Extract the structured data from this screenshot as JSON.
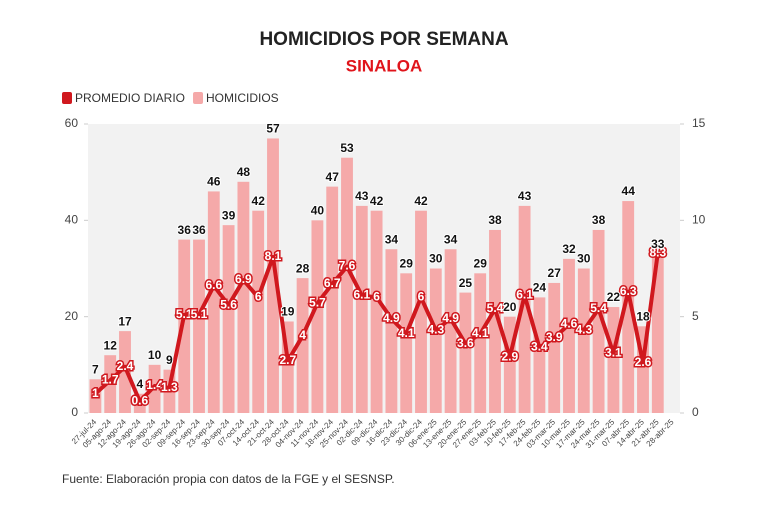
{
  "chart_data": {
    "type": "bar-line",
    "title": "HOMICIDIOS POR SEMANA",
    "subtitle": "SINALOA",
    "source": "Fuente: Elaboración propia con datos de la FGE y el SESNSP.",
    "categories": [
      "27-jul-24",
      "05-ago-24",
      "12-ago-24",
      "19-ago-24",
      "26-ago-24",
      "02-sep-24",
      "09-sep-24",
      "16-sep-24",
      "23-sep-24",
      "30-sep-24",
      "07-oct-24",
      "14-oct-24",
      "21-oct-24",
      "28-oct-24",
      "04-nov-24",
      "11-nov-24",
      "18-nov-24",
      "25-nov-24",
      "02-dic-24",
      "09-dic-24",
      "16-dic-24",
      "23-dic-24",
      "30-dic-24",
      "06-ene-25",
      "13-ene-25",
      "20-ene-25",
      "27-ene-25",
      "03-feb-25",
      "10-feb-25",
      "17-feb-25",
      "24-feb-25",
      "03-mar-25",
      "10-mar-25",
      "17-mar-25",
      "24-mar-25",
      "31-mar-25",
      "07-abr-25",
      "14-abr-25",
      "21-abr-25",
      "28-abr-25"
    ],
    "series": [
      {
        "name": "PROMEDIO DIARIO",
        "type": "line",
        "axis": "y2",
        "color": "#d0181e",
        "values": [
          1,
          1.7,
          2.4,
          0.6,
          1.4,
          1.3,
          5.1,
          5.1,
          6.6,
          5.6,
          6.9,
          6,
          8.1,
          2.7,
          4,
          5.7,
          6.7,
          7.6,
          6.1,
          6,
          4.9,
          4.1,
          6,
          4.3,
          4.9,
          3.6,
          4.1,
          5.4,
          2.9,
          6.1,
          3.4,
          3.9,
          4.6,
          4.3,
          5.4,
          3.1,
          6.3,
          2.6,
          8.3,
          null
        ]
      },
      {
        "name": "HOMICIDIOS",
        "type": "bar",
        "color": "#f5a9a9",
        "values": [
          7,
          12,
          17,
          4,
          10,
          9,
          36,
          36,
          46,
          39,
          48,
          42,
          57,
          19,
          28,
          40,
          47,
          53,
          43,
          42,
          34,
          29,
          42,
          30,
          34,
          25,
          29,
          38,
          20,
          43,
          24,
          27,
          32,
          30,
          38,
          22,
          44,
          18,
          33,
          null
        ]
      }
    ],
    "ylim": [
      0,
      60
    ],
    "yticks": [
      0,
      20,
      40,
      60
    ],
    "y2lim": [
      0,
      15
    ],
    "y2ticks": [
      0,
      5,
      10,
      15
    ],
    "legend": "top-left"
  }
}
